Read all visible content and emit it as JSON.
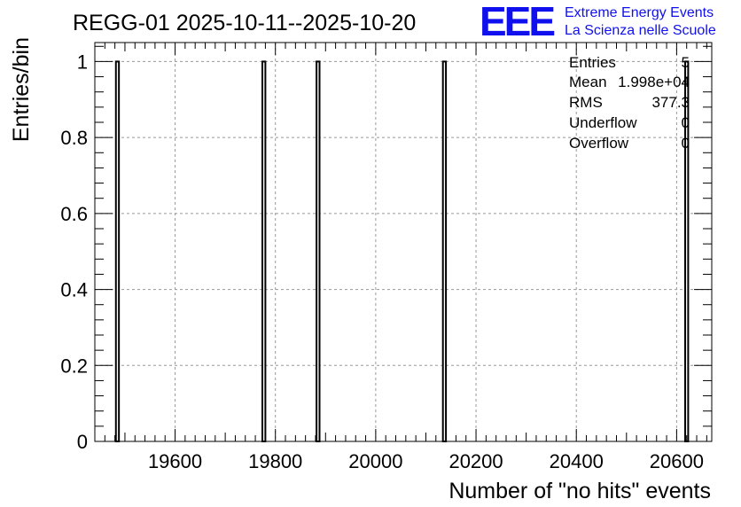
{
  "header": {
    "title": "REGG-01 2025-10-11--2025-10-20",
    "logo_text": "EEE",
    "logo_line1": "Extreme Energy Events",
    "logo_line2": "La Scienza nelle Scuole",
    "logo_color": "#1010ee"
  },
  "stats": {
    "entries_label": "Entries",
    "entries_value": "5",
    "mean_label": "Mean",
    "mean_value": "1.998e+04",
    "rms_label": "RMS",
    "rms_value": "377.3",
    "underflow_label": "Underflow",
    "underflow_value": "0",
    "overflow_label": "Overflow",
    "overflow_value": "0"
  },
  "chart_data": {
    "type": "bar",
    "title": "REGG-01 2025-10-11--2025-10-20",
    "xlabel": "Number of \"no hits\" events",
    "ylabel": "Entries/bin",
    "xlim": [
      19440,
      20670
    ],
    "ylim": [
      0,
      1.05
    ],
    "x_ticks": [
      19600,
      19800,
      20000,
      20200,
      20400,
      20600
    ],
    "x_tick_labels": [
      "19600",
      "19800",
      "20000",
      "20200",
      "20400",
      "20600"
    ],
    "y_ticks": [
      0,
      0.2,
      0.4,
      0.6,
      0.8,
      1
    ],
    "y_tick_labels": [
      "0",
      "0.2",
      "0.4",
      "0.6",
      "0.8",
      "1"
    ],
    "grid": true,
    "bin_width": 6,
    "bins": [
      {
        "x": 19485,
        "value": 1
      },
      {
        "x": 19777,
        "value": 1
      },
      {
        "x": 19885,
        "value": 1
      },
      {
        "x": 20137,
        "value": 1
      },
      {
        "x": 20620,
        "value": 1
      }
    ],
    "colors": {
      "bar_fill": "#ffffff",
      "bar_stroke": "#000000",
      "grid": "#999999",
      "axis": "#000000"
    }
  }
}
